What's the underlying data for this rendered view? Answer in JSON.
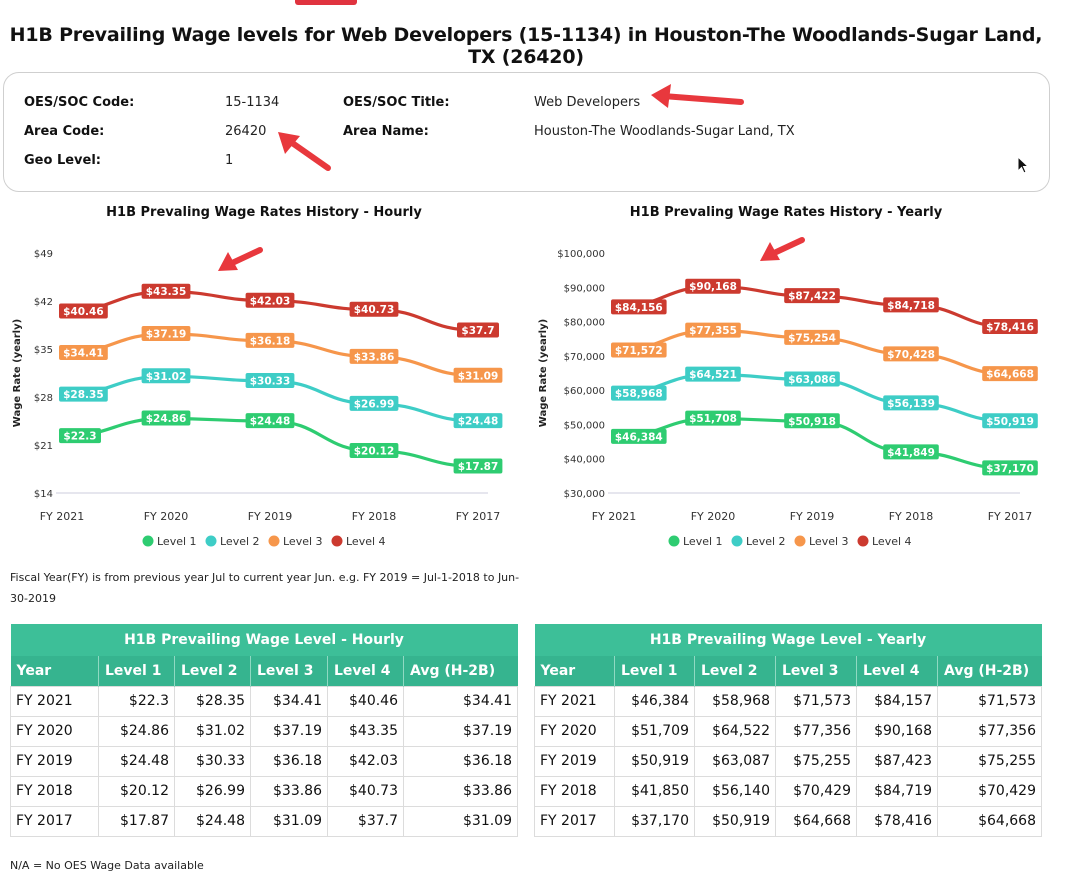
{
  "page": {
    "title": "H1B Prevailing Wage levels for Web Developers (15-1134) in Houston-The Woodlands-Sugar Land, TX (26420)"
  },
  "info": {
    "soc_code_label": "OES/SOC Code:",
    "soc_code_value": "15-1134",
    "area_code_label": "Area Code:",
    "area_code_value": "26420",
    "geo_level_label": "Geo Level:",
    "geo_level_value": "1",
    "soc_title_label": "OES/SOC Title:",
    "soc_title_value": "Web Developers",
    "area_name_label": "Area Name:",
    "area_name_value": "Houston-The Woodlands-Sugar Land, TX"
  },
  "colors": {
    "level1": "#2ecc71",
    "level2": "#3ecdc6",
    "level3": "#f6964b",
    "level4": "#cc3a2f",
    "table_header": "#36b48f"
  },
  "chart_data": [
    {
      "type": "line",
      "title": "H1B Prevaling Wage Rates History - Hourly",
      "ylabel": "Wage Rate (yearly)",
      "xlabel": "",
      "categories": [
        "FY 2021",
        "FY 2020",
        "FY 2019",
        "FY 2018",
        "FY 2017"
      ],
      "ylim": [
        14,
        49
      ],
      "yticks": [
        14,
        21,
        28,
        35,
        42,
        49
      ],
      "ytick_labels": [
        "$14",
        "$21",
        "$28",
        "$35",
        "$42",
        "$49"
      ],
      "legend": "bottom",
      "series": [
        {
          "name": "Level 1",
          "values": [
            22.3,
            24.86,
            24.48,
            20.12,
            17.87
          ],
          "labels": [
            "$22.3",
            "$24.86",
            "$24.48",
            "$20.12",
            "$17.87"
          ]
        },
        {
          "name": "Level 2",
          "values": [
            28.35,
            31.02,
            30.33,
            26.99,
            24.48
          ],
          "labels": [
            "$28.35",
            "$31.02",
            "$30.33",
            "$26.99",
            "$24.48"
          ]
        },
        {
          "name": "Level 3",
          "values": [
            34.41,
            37.19,
            36.18,
            33.86,
            31.09
          ],
          "labels": [
            "$34.41",
            "$37.19",
            "$36.18",
            "$33.86",
            "$31.09"
          ]
        },
        {
          "name": "Level 4",
          "values": [
            40.46,
            43.35,
            42.03,
            40.73,
            37.7
          ],
          "labels": [
            "$40.46",
            "$43.35",
            "$42.03",
            "$40.73",
            "$37.7"
          ]
        }
      ]
    },
    {
      "type": "line",
      "title": "H1B Prevaling Wage Rates History - Yearly",
      "ylabel": "Wage Rate (yearly)",
      "xlabel": "",
      "categories": [
        "FY 2021",
        "FY 2020",
        "FY 2019",
        "FY 2018",
        "FY 2017"
      ],
      "ylim": [
        30000,
        100000
      ],
      "yticks": [
        30000,
        40000,
        50000,
        60000,
        70000,
        80000,
        90000,
        100000
      ],
      "ytick_labels": [
        "$30,000",
        "$40,000",
        "$50,000",
        "$60,000",
        "$70,000",
        "$80,000",
        "$90,000",
        "$100,000"
      ],
      "legend": "bottom",
      "series": [
        {
          "name": "Level 1",
          "values": [
            46384,
            51708,
            50918,
            41849,
            37170
          ],
          "labels": [
            "$46,384",
            "$51,708",
            "$50,918",
            "$41,849",
            "$37,170"
          ]
        },
        {
          "name": "Level 2",
          "values": [
            58968,
            64521,
            63086,
            56139,
            50919
          ],
          "labels": [
            "$58,968",
            "$64,521",
            "$63,086",
            "$56,139",
            "$50,919"
          ]
        },
        {
          "name": "Level 3",
          "values": [
            71572,
            77355,
            75254,
            70428,
            64668
          ],
          "labels": [
            "$71,572",
            "$77,355",
            "$75,254",
            "$70,428",
            "$64,668"
          ]
        },
        {
          "name": "Level 4",
          "values": [
            84156,
            90168,
            87422,
            84718,
            78416
          ],
          "labels": [
            "$84,156",
            "$90,168",
            "$87,422",
            "$84,718",
            "$78,416"
          ]
        }
      ]
    }
  ],
  "note": "Fiscal Year(FY) is from previous year Jul to current year Jun. e.g. FY 2019 = Jul-1-2018 to Jun-30-2019",
  "footnote": "N/A = No OES Wage Data available",
  "tables": {
    "hourly": {
      "caption": "H1B Prevailing Wage Level - Hourly",
      "headers": [
        "Year",
        "Level 1",
        "Level 2",
        "Level 3",
        "Level 4",
        "Avg (H-2B)"
      ],
      "rows": [
        [
          "FY 2021",
          "$22.3",
          "$28.35",
          "$34.41",
          "$40.46",
          "$34.41"
        ],
        [
          "FY 2020",
          "$24.86",
          "$31.02",
          "$37.19",
          "$43.35",
          "$37.19"
        ],
        [
          "FY 2019",
          "$24.48",
          "$30.33",
          "$36.18",
          "$42.03",
          "$36.18"
        ],
        [
          "FY 2018",
          "$20.12",
          "$26.99",
          "$33.86",
          "$40.73",
          "$33.86"
        ],
        [
          "FY 2017",
          "$17.87",
          "$24.48",
          "$31.09",
          "$37.7",
          "$31.09"
        ]
      ]
    },
    "yearly": {
      "caption": "H1B Prevailing Wage Level - Yearly",
      "headers": [
        "Year",
        "Level 1",
        "Level 2",
        "Level 3",
        "Level 4",
        "Avg (H-2B)"
      ],
      "rows": [
        [
          "FY 2021",
          "$46,384",
          "$58,968",
          "$71,573",
          "$84,157",
          "$71,573"
        ],
        [
          "FY 2020",
          "$51,709",
          "$64,522",
          "$77,356",
          "$90,168",
          "$77,356"
        ],
        [
          "FY 2019",
          "$50,919",
          "$63,087",
          "$75,255",
          "$87,423",
          "$75,255"
        ],
        [
          "FY 2018",
          "$41,850",
          "$56,140",
          "$70,429",
          "$84,719",
          "$70,429"
        ],
        [
          "FY 2017",
          "$37,170",
          "$50,919",
          "$64,668",
          "$78,416",
          "$64,668"
        ]
      ]
    }
  }
}
